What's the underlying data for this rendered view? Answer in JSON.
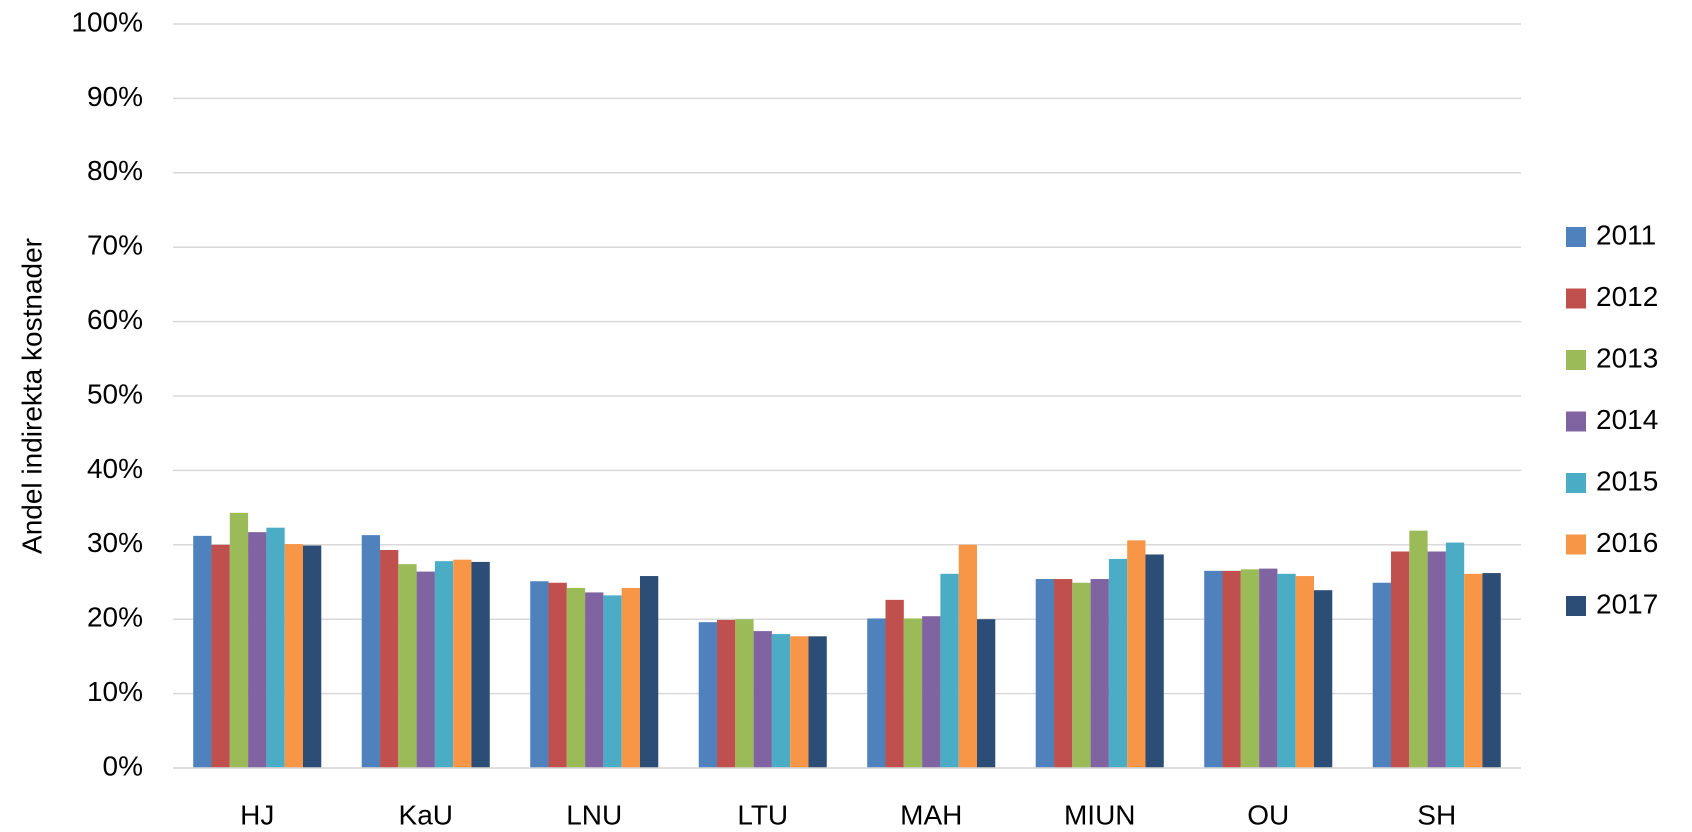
{
  "chart_data": {
    "type": "bar",
    "y_label": "Andel indirekta kostnader",
    "categories": [
      "HJ",
      "KaU",
      "LNU",
      "LTU",
      "MAH",
      "MIUN",
      "OU",
      "SH"
    ],
    "series": [
      {
        "name": "2011",
        "color": "#4f81bd",
        "values": [
          31.2,
          31.3,
          25.1,
          19.6,
          20.1,
          25.4,
          26.5,
          24.9
        ]
      },
      {
        "name": "2012",
        "color": "#c0504d",
        "values": [
          30.0,
          29.3,
          24.9,
          19.9,
          22.6,
          25.4,
          26.5,
          29.1
        ]
      },
      {
        "name": "2013",
        "color": "#9bbb59",
        "values": [
          34.3,
          27.4,
          24.2,
          20.0,
          20.1,
          24.9,
          26.7,
          31.9
        ]
      },
      {
        "name": "2014",
        "color": "#8064a2",
        "values": [
          31.7,
          26.4,
          23.6,
          18.4,
          20.4,
          25.4,
          26.8,
          29.1
        ]
      },
      {
        "name": "2015",
        "color": "#4bacc6",
        "values": [
          32.3,
          27.8,
          23.2,
          18.0,
          26.1,
          28.1,
          26.1,
          30.3
        ]
      },
      {
        "name": "2016",
        "color": "#f79646",
        "values": [
          30.1,
          28.0,
          24.2,
          17.7,
          30.0,
          30.6,
          25.8,
          26.1
        ]
      },
      {
        "name": "2017",
        "color": "#2c4d75",
        "values": [
          29.9,
          27.7,
          25.8,
          17.7,
          20.0,
          28.7,
          23.9,
          26.2
        ]
      }
    ],
    "ylim": [
      0,
      100
    ],
    "yticks": [
      {
        "value": 0,
        "label": "0%"
      },
      {
        "value": 10,
        "label": "10%"
      },
      {
        "value": 20,
        "label": "20%"
      },
      {
        "value": 30,
        "label": "30%"
      },
      {
        "value": 40,
        "label": "40%"
      },
      {
        "value": 50,
        "label": "50%"
      },
      {
        "value": 60,
        "label": "60%"
      },
      {
        "value": 70,
        "label": "70%"
      },
      {
        "value": 80,
        "label": "80%"
      },
      {
        "value": 90,
        "label": "90%"
      },
      {
        "value": 100,
        "label": "100%"
      }
    ],
    "grid": true,
    "legend": "right"
  }
}
